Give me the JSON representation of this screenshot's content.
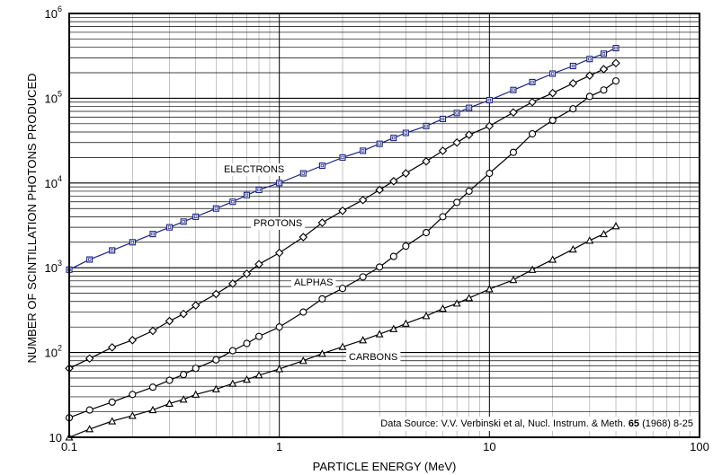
{
  "chart_data": {
    "type": "line",
    "xlabel": "PARTICLE ENERGY  (MeV)",
    "ylabel": "NUMBER OF SCINTILLATION PHOTONS PRODUCED",
    "xscale": "log",
    "yscale": "log",
    "xlim": [
      0.1,
      100
    ],
    "ylim": [
      10,
      1000000
    ],
    "grid": true,
    "x_ticks": [
      {
        "value": 0.1,
        "label": "0.1"
      },
      {
        "value": 1,
        "label": "1"
      },
      {
        "value": 10,
        "label": "10"
      },
      {
        "value": 100,
        "label": "100"
      }
    ],
    "y_ticks": [
      {
        "value": 10,
        "base": "10",
        "exp": ""
      },
      {
        "value": 100,
        "base": "10",
        "exp": "2"
      },
      {
        "value": 1000,
        "base": "10",
        "exp": "3"
      },
      {
        "value": 10000,
        "base": "10",
        "exp": "4"
      },
      {
        "value": 100000,
        "base": "10",
        "exp": "5"
      },
      {
        "value": 1000000,
        "base": "10",
        "exp": "6"
      }
    ],
    "series": [
      {
        "name": "ELECTRONS",
        "marker": "square",
        "color": "#1a237e",
        "x": [
          0.1,
          0.125,
          0.16,
          0.2,
          0.25,
          0.3,
          0.35,
          0.4,
          0.5,
          0.6,
          0.7,
          0.8,
          1.0,
          1.3,
          1.6,
          2.0,
          2.5,
          3.0,
          3.5,
          4.0,
          5.0,
          6.0,
          7.0,
          8.0,
          10,
          13,
          16,
          20,
          25,
          30,
          35,
          40
        ],
        "y": [
          950,
          1250,
          1600,
          2000,
          2500,
          3000,
          3500,
          4000,
          5000,
          6000,
          7200,
          8300,
          10000,
          13000,
          16000,
          20000,
          24000,
          29000,
          34000,
          39000,
          47000,
          57000,
          67000,
          77000,
          95000,
          125000,
          155000,
          195000,
          240000,
          290000,
          335000,
          390000
        ]
      },
      {
        "name": "PROTONS",
        "marker": "diamond",
        "color": "#000000",
        "x": [
          0.1,
          0.125,
          0.16,
          0.2,
          0.25,
          0.3,
          0.35,
          0.4,
          0.5,
          0.6,
          0.7,
          0.8,
          1.0,
          1.3,
          1.6,
          2.0,
          2.5,
          3.0,
          3.5,
          4.0,
          5.0,
          6.0,
          7.0,
          8.0,
          10,
          13,
          16,
          20,
          25,
          30,
          35,
          40
        ],
        "y": [
          65,
          85,
          115,
          140,
          180,
          235,
          285,
          360,
          490,
          650,
          850,
          1100,
          1500,
          2300,
          3400,
          4700,
          6300,
          8300,
          10500,
          13000,
          18000,
          24000,
          30000,
          37000,
          47000,
          68000,
          90000,
          115000,
          150000,
          185000,
          220000,
          260000
        ]
      },
      {
        "name": "ALPHAS",
        "marker": "circle",
        "color": "#000000",
        "x": [
          0.1,
          0.125,
          0.16,
          0.2,
          0.25,
          0.3,
          0.35,
          0.4,
          0.5,
          0.6,
          0.7,
          0.8,
          1.0,
          1.3,
          1.6,
          2.0,
          2.5,
          3.0,
          3.5,
          4.0,
          5.0,
          6.0,
          7.0,
          8.0,
          10,
          13,
          16,
          20,
          25,
          30,
          35,
          40
        ],
        "y": [
          17,
          21,
          26,
          32,
          39,
          47,
          55,
          65,
          82,
          105,
          128,
          155,
          200,
          300,
          430,
          570,
          780,
          1020,
          1360,
          1800,
          2600,
          4000,
          5900,
          8000,
          13000,
          23000,
          38000,
          55000,
          75000,
          105000,
          125000,
          160000
        ]
      },
      {
        "name": "CARBONS",
        "marker": "triangle",
        "color": "#000000",
        "x": [
          0.1,
          0.125,
          0.16,
          0.2,
          0.25,
          0.3,
          0.35,
          0.4,
          0.5,
          0.6,
          0.7,
          0.8,
          1.0,
          1.3,
          1.6,
          2.0,
          2.5,
          3.0,
          3.5,
          4.0,
          5.0,
          6.0,
          7.0,
          8.0,
          10,
          13,
          16,
          20,
          25,
          30,
          35,
          40
        ],
        "y": [
          10,
          12.5,
          15.5,
          18,
          21,
          25,
          28,
          32,
          37,
          43,
          48,
          54,
          64,
          80,
          97,
          117,
          140,
          165,
          190,
          220,
          270,
          330,
          380,
          440,
          560,
          720,
          950,
          1250,
          1650,
          2100,
          2500,
          3100
        ]
      }
    ],
    "annotations": {
      "series_labels": [
        "ELECTRONS",
        "PROTONS",
        "ALPHAS",
        "CARBONS"
      ],
      "source_prefix": "Data Source:  V.V. Verbinski et al, Nucl. Instrum. & Meth. ",
      "source_bold": "65",
      "source_suffix": "  (1968) 8-25"
    }
  }
}
